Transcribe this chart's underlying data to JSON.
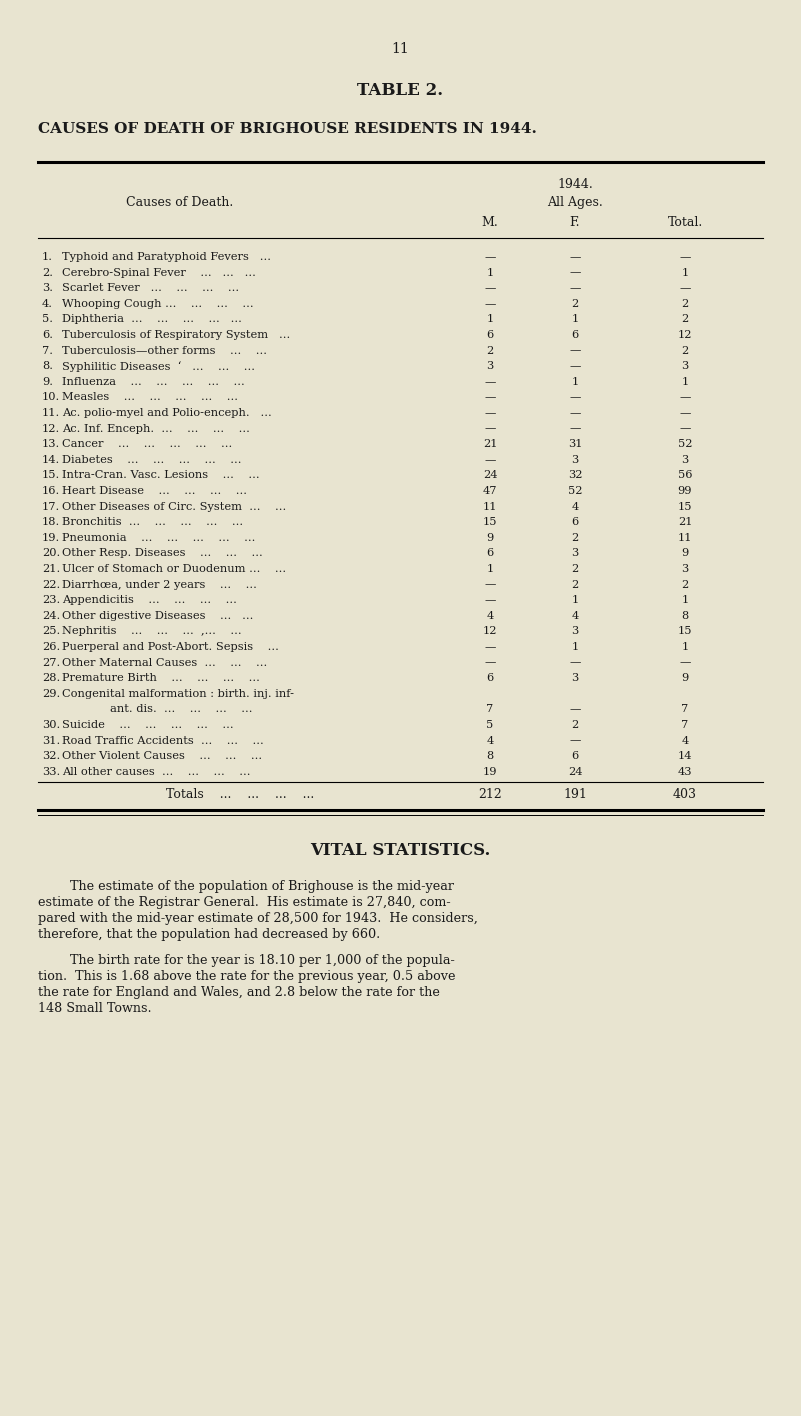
{
  "page_number": "11",
  "table_title": "TABLE 2.",
  "main_heading": "CAUSES OF DEATH OF BRIGHOUSE RESIDENTS IN 1944.",
  "col_header_year": "1944.",
  "col_header_all_ages": "All Ages.",
  "col_header_m": "M.",
  "col_header_f": "F.",
  "col_header_total": "Total.",
  "col_header_causes": "Causes of Death.",
  "rows": [
    {
      "num": "1.",
      "cause": "Typhoid and Paratyphoid Fevers   ...",
      "m": "—",
      "f": "—",
      "total": "—"
    },
    {
      "num": "2.",
      "cause": "Cerebro-Spinal Fever    ...   ...   ...",
      "m": "1",
      "f": "—",
      "total": "1"
    },
    {
      "num": "3.",
      "cause": "Scarlet Fever   ...    ...    ...    ...",
      "m": "—",
      "f": "—",
      "total": "—"
    },
    {
      "num": "4.",
      "cause": "Whooping Cough ...    ...    ...    ...",
      "m": "—",
      "f": "2",
      "total": "2"
    },
    {
      "num": "5.",
      "cause": "Diphtheria  ...    ...    ...    ...   ...",
      "m": "1",
      "f": "1",
      "total": "2"
    },
    {
      "num": "6.",
      "cause": "Tuberculosis of Respiratory System   ...",
      "m": "6",
      "f": "6",
      "total": "12"
    },
    {
      "num": "7.",
      "cause": "Tuberculosis—other forms    ...    ...",
      "m": "2",
      "f": "—",
      "total": "2"
    },
    {
      "num": "8.",
      "cause": "Syphilitic Diseases  ‘   ...    ...    ...",
      "m": "3",
      "f": "—",
      "total": "3"
    },
    {
      "num": "9.",
      "cause": "Influenza    ...    ...    ...    ...    ...",
      "m": "—",
      "f": "1",
      "total": "1"
    },
    {
      "num": "10.",
      "cause": "Measles    ...    ...    ...    ...    ...",
      "m": "—",
      "f": "—",
      "total": "—"
    },
    {
      "num": "11.",
      "cause": "Ac. polio-myel and Polio-enceph.   ...",
      "m": "—",
      "f": "—",
      "total": "—"
    },
    {
      "num": "12.",
      "cause": "Ac. Inf. Enceph.  ...    ...    ...    ...",
      "m": "—",
      "f": "—",
      "total": "—"
    },
    {
      "num": "13.",
      "cause": "Cancer    ...    ...    ...    ...    ...",
      "m": "21",
      "f": "31",
      "total": "52"
    },
    {
      "num": "14.",
      "cause": "Diabetes    ...    ...    ...    ...    ...",
      "m": "—",
      "f": "3",
      "total": "3"
    },
    {
      "num": "15.",
      "cause": "Intra-Cran. Vasc. Lesions    ...    ...",
      "m": "24",
      "f": "32",
      "total": "56"
    },
    {
      "num": "16.",
      "cause": "Heart Disease    ...    ...    ...    ...",
      "m": "47",
      "f": "52",
      "total": "99"
    },
    {
      "num": "17.",
      "cause": "Other Diseases of Circ. System  ...    ...",
      "m": "11",
      "f": "4",
      "total": "15"
    },
    {
      "num": "18.",
      "cause": "Bronchitis  ...    ...    ...    ...    ...",
      "m": "15",
      "f": "6",
      "total": "21"
    },
    {
      "num": "19.",
      "cause": "Pneumonia    ...    ...    ...    ...    ...",
      "m": "9",
      "f": "2",
      "total": "11"
    },
    {
      "num": "20.",
      "cause": "Other Resp. Diseases    ...    ...    ...",
      "m": "6",
      "f": "3",
      "total": "9"
    },
    {
      "num": "21.",
      "cause": "Ulcer of Stomach or Duodenum ...    ...",
      "m": "1",
      "f": "2",
      "total": "3"
    },
    {
      "num": "22.",
      "cause": "Diarrhœa, under 2 years    ...    ...",
      "m": "—",
      "f": "2",
      "total": "2"
    },
    {
      "num": "23.",
      "cause": "Appendicitis    ...    ...    ...    ...",
      "m": "—",
      "f": "1",
      "total": "1"
    },
    {
      "num": "24.",
      "cause": "Other digestive Diseases    ...   ...",
      "m": "4",
      "f": "4",
      "total": "8"
    },
    {
      "num": "25.",
      "cause": "Nephritis    ...    ...    ...  ,...    ...",
      "m": "12",
      "f": "3",
      "total": "15"
    },
    {
      "num": "26.",
      "cause": "Puerperal and Post-Abort. Sepsis    ...",
      "m": "—",
      "f": "1",
      "total": "1"
    },
    {
      "num": "27.",
      "cause": "Other Maternal Causes  ...    ...    ...",
      "m": "—",
      "f": "—",
      "total": "—"
    },
    {
      "num": "28.",
      "cause": "Premature Birth    ...    ...    ...    ...",
      "m": "6",
      "f": "3",
      "total": "9"
    },
    {
      "num": "29.",
      "cause": "Congenital malformation : birth. inj. inf-",
      "cause2": "ant. dis.  ...    ...    ...    ...",
      "m": "7",
      "f": "—",
      "total": "7"
    },
    {
      "num": "30.",
      "cause": "Suicide    ...    ...    ...    ...    ...",
      "m": "5",
      "f": "2",
      "total": "7"
    },
    {
      "num": "31.",
      "cause": "Road Traffic Accidents  ...    ...    ...",
      "m": "4",
      "f": "—",
      "total": "4"
    },
    {
      "num": "32.",
      "cause": "Other Violent Causes    ...    ...    ...",
      "m": "8",
      "f": "6",
      "total": "14"
    },
    {
      "num": "33.",
      "cause": "All other causes  ...    ...    ...    ...",
      "m": "19",
      "f": "24",
      "total": "43"
    }
  ],
  "totals_label": "Totals    ...    ...    ...    ...",
  "totals_m": "212",
  "totals_f": "191",
  "totals_total": "403",
  "vital_stats_heading": "VITAL STATISTICS.",
  "vital_para1_lines": [
    "        The estimate of the population of Brighouse is the mid-year",
    "estimate of the Registrar General.  His estimate is 27,840, com-",
    "pared with the mid-year estimate of 28,500 for 1943.  He considers,",
    "therefore, that the population had decreased by 660."
  ],
  "vital_para2_lines": [
    "        The birth rate for the year is 18.10 per 1,000 of the popula-",
    "tion.  This is 1.68 above the rate for the previous year, 0.5 above",
    "the rate for England and Wales, and 2.8 below the rate for the",
    "148 Small Towns."
  ],
  "bg_color": "#e8e4d0",
  "text_color": "#1a1a1a"
}
